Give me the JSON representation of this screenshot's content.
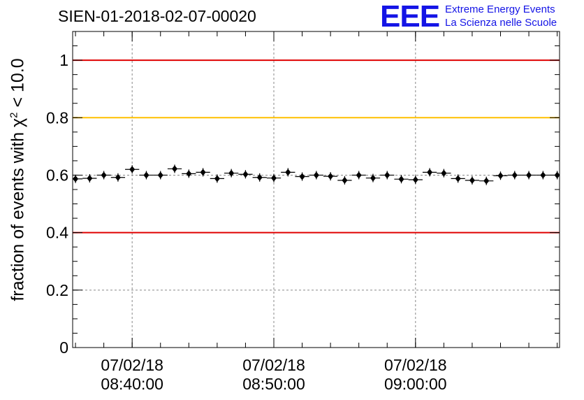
{
  "chart_data": {
    "type": "scatter",
    "title": "SIEN-01-2018-02-07-00020",
    "ylabel_prefix": "fraction of events with ",
    "ylabel_symbol": "χ",
    "ylabel_sup": "2",
    "ylabel_suffix": " < 10.0",
    "ylim": [
      0,
      1.1
    ],
    "yticks": [
      {
        "value": 0,
        "label": "0"
      },
      {
        "value": 0.2,
        "label": "0.2"
      },
      {
        "value": 0.4,
        "label": "0.4"
      },
      {
        "value": 0.6,
        "label": "0.6"
      },
      {
        "value": 0.8,
        "label": "0.8"
      },
      {
        "value": 1,
        "label": "1"
      }
    ],
    "xlim": [
      "08:35:48",
      "09:10:10"
    ],
    "xticks": [
      {
        "time": "08:40:00",
        "date": "07/02/18",
        "label": "08:40:00"
      },
      {
        "time": "08:50:00",
        "date": "07/02/18",
        "label": "08:50:00"
      },
      {
        "time": "09:00:00",
        "date": "07/02/18",
        "label": "09:00:00"
      }
    ],
    "reference_lines": [
      {
        "y": 1.0,
        "color": "#e00000"
      },
      {
        "y": 0.8,
        "color": "#ffc000"
      },
      {
        "y": 0.4,
        "color": "#e00000"
      }
    ],
    "grid": true,
    "bin_width_minutes": 1,
    "series": [
      {
        "x": [
          "08:36:00",
          "08:37:00",
          "08:38:00",
          "08:39:00",
          "08:40:00",
          "08:41:00",
          "08:42:00",
          "08:43:00",
          "08:44:00",
          "08:45:00",
          "08:46:00",
          "08:47:00",
          "08:48:00",
          "08:49:00",
          "08:50:00",
          "08:51:00",
          "08:52:00",
          "08:53:00",
          "08:54:00",
          "08:55:00",
          "08:56:00",
          "08:57:00",
          "08:58:00",
          "08:59:00",
          "09:00:00",
          "09:01:00",
          "09:02:00",
          "09:03:00",
          "09:04:00",
          "09:05:00",
          "09:06:00",
          "09:07:00",
          "09:08:00",
          "09:09:00",
          "09:10:00"
        ],
        "values": [
          0.587,
          0.589,
          0.6,
          0.592,
          0.62,
          0.6,
          0.6,
          0.622,
          0.605,
          0.61,
          0.588,
          0.607,
          0.603,
          0.592,
          0.59,
          0.61,
          0.595,
          0.6,
          0.596,
          0.582,
          0.6,
          0.59,
          0.6,
          0.586,
          0.584,
          0.61,
          0.607,
          0.588,
          0.582,
          0.58,
          0.598,
          0.6,
          0.6,
          0.6,
          0.6
        ]
      }
    ]
  },
  "logo": {
    "mark": "EEE",
    "line1": "Extreme Energy Events",
    "line2": "La Scienza nelle Scuole"
  },
  "colors": {
    "marker": "#000000",
    "logo": "#1414e6",
    "grid": "#888888"
  }
}
